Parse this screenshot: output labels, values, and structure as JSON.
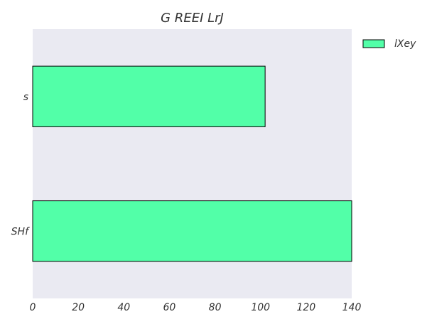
{
  "chart_data": {
    "type": "bar",
    "orientation": "horizontal",
    "title": "G REEI LrJ",
    "xlabel": "",
    "ylabel": "",
    "categories": [
      "SHf",
      "s"
    ],
    "series": [
      {
        "name": "lXey",
        "values": [
          140,
          102
        ]
      }
    ],
    "xlim": [
      0,
      140
    ],
    "xticks": [
      0,
      20,
      40,
      60,
      80,
      100,
      120,
      140
    ],
    "legend_position": "top-right-outside",
    "grid": false,
    "colors": {
      "bar_fill": "#52ffa8",
      "bar_stroke": "#000000",
      "plot_background": "#eaeaf2"
    }
  }
}
